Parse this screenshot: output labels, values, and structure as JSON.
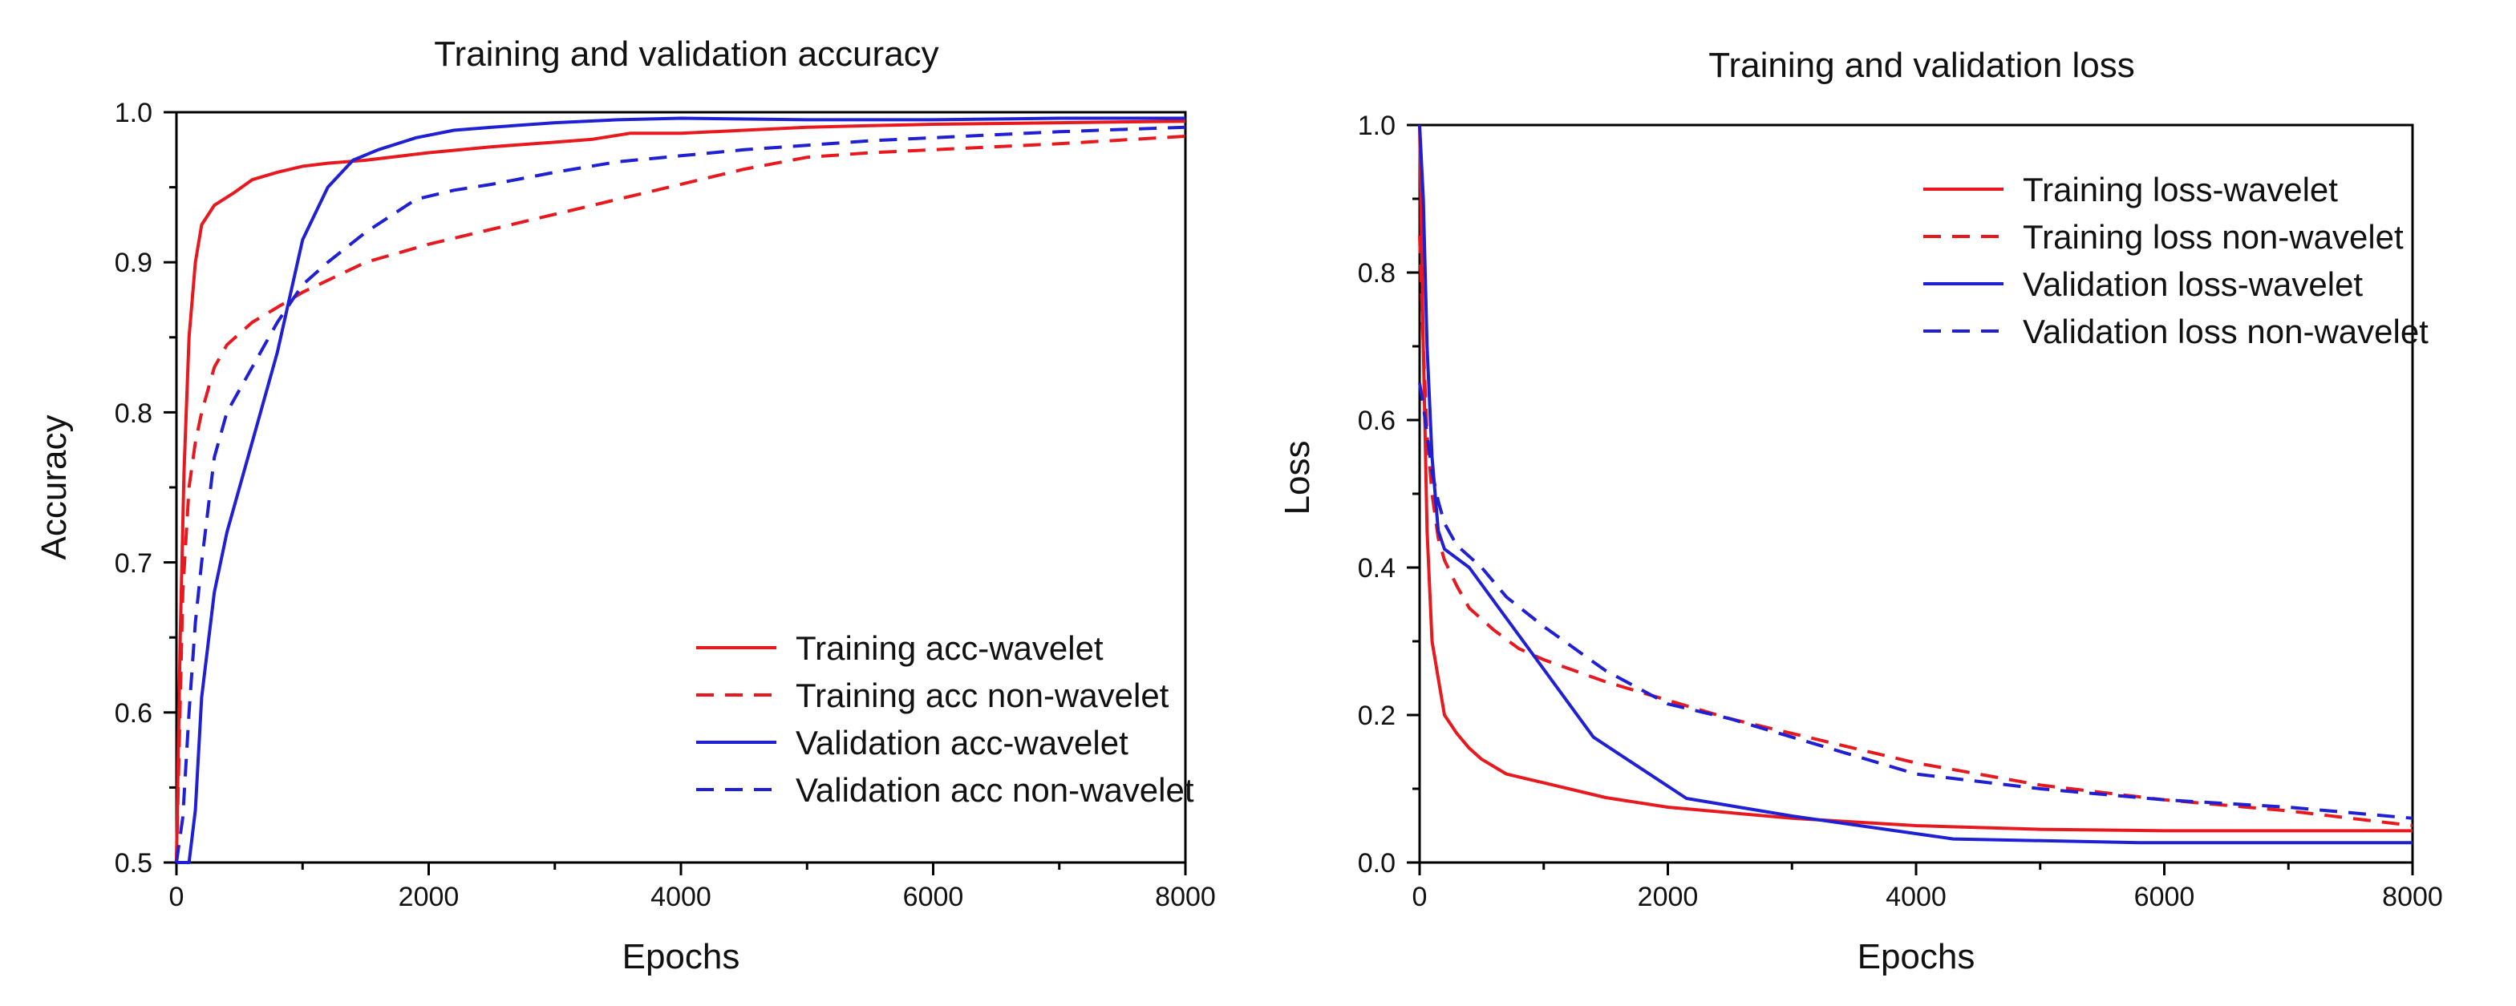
{
  "chart_data": [
    {
      "type": "line",
      "title": "Training and validation accuracy",
      "xlabel": "Epochs",
      "ylabel": "Accuracy",
      "xlim": [
        0,
        8000
      ],
      "ylim": [
        0.5,
        1.0
      ],
      "xticks": [
        0,
        2000,
        4000,
        6000,
        8000
      ],
      "yticks": [
        0.5,
        0.6,
        0.7,
        0.8,
        0.9,
        1.0
      ],
      "xtick_labels": [
        "0",
        "2000",
        "4000",
        "6000",
        "8000"
      ],
      "ytick_labels": [
        "0.5",
        "0.6",
        "0.7",
        "0.8",
        "0.9",
        "1.0"
      ],
      "legend_position": "bottom-right",
      "grid": false,
      "series": [
        {
          "name": "Training acc-wavelet",
          "color": "#e8191e",
          "style": "solid",
          "x": [
            0,
            30,
            60,
            100,
            150,
            200,
            300,
            450,
            600,
            800,
            1000,
            1200,
            1500,
            2000,
            2500,
            3000,
            3300,
            3600,
            4000,
            4500,
            5000,
            5500,
            6000,
            7000,
            8000
          ],
          "y": [
            0.5,
            0.65,
            0.76,
            0.85,
            0.9,
            0.925,
            0.938,
            0.946,
            0.955,
            0.96,
            0.964,
            0.966,
            0.968,
            0.973,
            0.977,
            0.98,
            0.982,
            0.986,
            0.986,
            0.988,
            0.99,
            0.991,
            0.992,
            0.993,
            0.994
          ]
        },
        {
          "name": "Training acc non-wavelet",
          "color": "#e8191e",
          "style": "dashed",
          "x": [
            0,
            50,
            100,
            150,
            200,
            300,
            400,
            600,
            800,
            1000,
            1200,
            1500,
            2000,
            2500,
            3000,
            3500,
            4000,
            4500,
            5000,
            5500,
            6000,
            7000,
            8000
          ],
          "y": [
            0.5,
            0.68,
            0.75,
            0.78,
            0.8,
            0.83,
            0.845,
            0.86,
            0.87,
            0.88,
            0.888,
            0.9,
            0.912,
            0.922,
            0.932,
            0.942,
            0.952,
            0.962,
            0.97,
            0.973,
            0.975,
            0.979,
            0.984
          ]
        },
        {
          "name": "Validation acc-wavelet",
          "color": "#1f1fd4",
          "style": "solid",
          "x": [
            0,
            100,
            150,
            200,
            300,
            400,
            600,
            800,
            1000,
            1200,
            1400,
            1600,
            1900,
            2200,
            2500,
            3000,
            3500,
            4000,
            5000,
            6000,
            7000,
            8000
          ],
          "y": [
            0.5,
            0.5,
            0.535,
            0.61,
            0.68,
            0.72,
            0.78,
            0.84,
            0.915,
            0.95,
            0.968,
            0.975,
            0.983,
            0.988,
            0.99,
            0.993,
            0.995,
            0.996,
            0.995,
            0.995,
            0.996,
            0.996
          ]
        },
        {
          "name": "Validation acc non-wavelet",
          "color": "#1f1fd4",
          "style": "dashed",
          "x": [
            0,
            50,
            100,
            150,
            200,
            300,
            400,
            600,
            800,
            1000,
            1200,
            1500,
            1900,
            2200,
            2500,
            3000,
            3500,
            4000,
            4500,
            5000,
            5500,
            6000,
            7000,
            8000
          ],
          "y": [
            0.5,
            0.53,
            0.6,
            0.66,
            0.7,
            0.77,
            0.8,
            0.83,
            0.86,
            0.885,
            0.9,
            0.92,
            0.942,
            0.948,
            0.952,
            0.96,
            0.967,
            0.971,
            0.975,
            0.978,
            0.981,
            0.983,
            0.987,
            0.99
          ]
        }
      ]
    },
    {
      "type": "line",
      "title": "Training and validation loss",
      "xlabel": "Epochs",
      "ylabel": "Loss",
      "xlim": [
        0,
        8000
      ],
      "ylim": [
        0.0,
        1.0
      ],
      "xticks": [
        0,
        2000,
        4000,
        6000,
        8000
      ],
      "yticks": [
        0.0,
        0.2,
        0.4,
        0.6,
        0.8,
        1.0
      ],
      "xtick_labels": [
        "0",
        "2000",
        "4000",
        "6000",
        "8000"
      ],
      "ytick_labels": [
        "0.0",
        "0.2",
        "0.4",
        "0.6",
        "0.8",
        "1.0"
      ],
      "legend_position": "top-right",
      "grid": false,
      "series": [
        {
          "name": "Training loss-wavelet",
          "color": "#e8191e",
          "style": "solid",
          "x": [
            0,
            30,
            60,
            100,
            150,
            200,
            300,
            400,
            500,
            700,
            1000,
            1500,
            2000,
            3000,
            4000,
            5000,
            6000,
            7000,
            8000
          ],
          "y": [
            1.0,
            0.7,
            0.45,
            0.3,
            0.25,
            0.2,
            0.175,
            0.155,
            0.14,
            0.12,
            0.108,
            0.088,
            0.075,
            0.06,
            0.05,
            0.045,
            0.043,
            0.043,
            0.043
          ]
        },
        {
          "name": "Training loss non-wavelet",
          "color": "#e8191e",
          "style": "dashed",
          "x": [
            0,
            30,
            60,
            100,
            150,
            200,
            300,
            400,
            600,
            800,
            1000,
            1500,
            2000,
            2500,
            3000,
            3500,
            4000,
            5000,
            6000,
            7000,
            8000
          ],
          "y": [
            0.85,
            0.7,
            0.58,
            0.5,
            0.44,
            0.41,
            0.375,
            0.345,
            0.315,
            0.29,
            0.275,
            0.245,
            0.22,
            0.195,
            0.175,
            0.155,
            0.135,
            0.105,
            0.085,
            0.07,
            0.05
          ]
        },
        {
          "name": "Validation loss-wavelet",
          "color": "#1f1fd4",
          "style": "solid",
          "x": [
            0,
            30,
            60,
            100,
            150,
            200,
            400,
            1400,
            2150,
            3000,
            4300,
            5800,
            8000
          ],
          "y": [
            1.0,
            0.9,
            0.7,
            0.55,
            0.45,
            0.425,
            0.4,
            0.17,
            0.087,
            0.063,
            0.032,
            0.027,
            0.027
          ]
        },
        {
          "name": "Validation loss non-wavelet",
          "color": "#1f1fd4",
          "style": "dashed",
          "x": [
            0,
            30,
            60,
            100,
            150,
            200,
            300,
            500,
            700,
            1000,
            1500,
            2000,
            2500,
            3000,
            3500,
            4000,
            5000,
            6000,
            7000,
            8000
          ],
          "y": [
            0.65,
            0.62,
            0.58,
            0.53,
            0.49,
            0.46,
            0.43,
            0.4,
            0.36,
            0.32,
            0.26,
            0.215,
            0.195,
            0.17,
            0.145,
            0.12,
            0.1,
            0.085,
            0.075,
            0.06
          ]
        }
      ]
    }
  ]
}
